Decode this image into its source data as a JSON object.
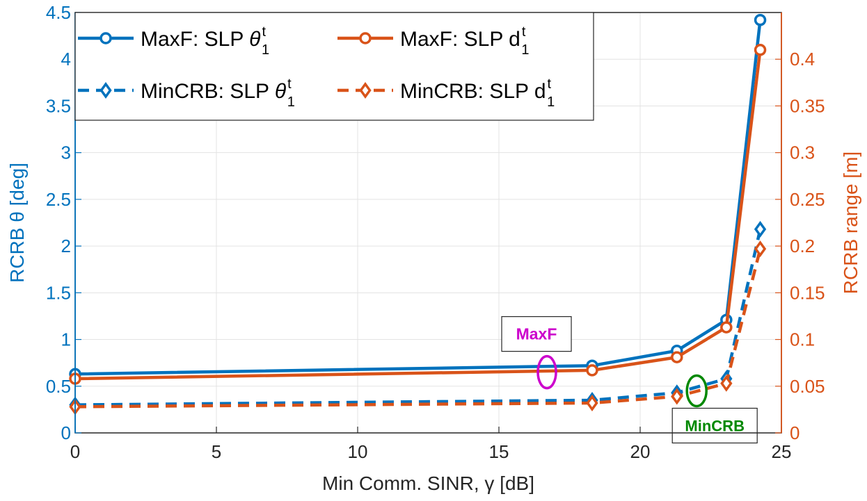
{
  "chart_data": {
    "type": "line",
    "xlabel": "Min Comm. SINR, γ [dB]",
    "ylabel_left": "RCRB θ [deg]",
    "ylabel_right": "RCRB range [m]",
    "xlim": [
      0,
      25
    ],
    "ylim_left": [
      0,
      4.5
    ],
    "ylim_right": [
      0,
      0.45
    ],
    "grid": true,
    "legend_position": "top-left",
    "x_ticks": [
      "0",
      "5",
      "10",
      "15",
      "20",
      "25"
    ],
    "y_ticks_left": [
      "0",
      "0.5",
      "1",
      "1.5",
      "2",
      "2.5",
      "3",
      "3.5",
      "4",
      "4.5"
    ],
    "y_ticks_right": [
      "0",
      "0.05",
      "0.1",
      "0.15",
      "0.2",
      "0.25",
      "0.3",
      "0.35",
      "0.4"
    ],
    "x": [
      0,
      18.3,
      21.3,
      23.05,
      24.25
    ],
    "series": [
      {
        "name": "MaxF: SLP θ",
        "legend_sup": "t",
        "legend_sub": "1",
        "axis": "left",
        "style": "solid",
        "marker": "circle",
        "color": "#0072BD",
        "values": [
          0.63,
          0.72,
          0.88,
          1.21,
          4.42
        ]
      },
      {
        "name": "MaxF: SLP d",
        "legend_sup": "t",
        "legend_sub": "1",
        "axis": "right",
        "style": "solid",
        "marker": "circle",
        "color": "#D95319",
        "values": [
          0.058,
          0.067,
          0.081,
          0.113,
          0.41
        ]
      },
      {
        "name": "MinCRB: SLP θ",
        "legend_sup": "t",
        "legend_sub": "1",
        "axis": "left",
        "style": "dashed",
        "marker": "diamond",
        "color": "#0072BD",
        "values": [
          0.3,
          0.35,
          0.43,
          0.58,
          2.18
        ]
      },
      {
        "name": "MinCRB: SLP d",
        "legend_sup": "t",
        "legend_sub": "1",
        "axis": "right",
        "style": "dashed",
        "marker": "diamond",
        "color": "#D95319",
        "values": [
          0.028,
          0.032,
          0.039,
          0.053,
          0.197
        ]
      }
    ],
    "annotations": [
      {
        "text": "MaxF",
        "color": "#CC00CC",
        "x": 16.7,
        "y": 0.65
      },
      {
        "text": "MinCRB",
        "color": "#008800",
        "x": 22.0,
        "y": 0.45
      }
    ]
  }
}
